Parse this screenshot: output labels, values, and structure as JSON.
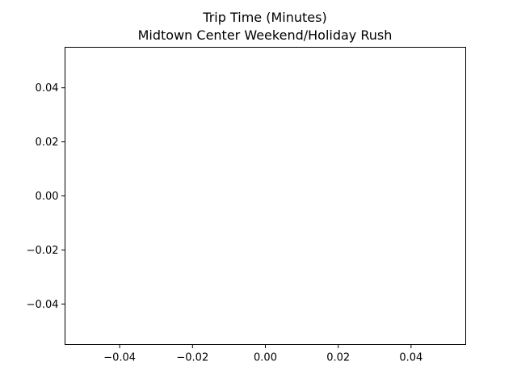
{
  "chart_data": {
    "type": "line",
    "title": [
      "Trip Time (Minutes)",
      "Midtown Center Weekend/Holiday Rush"
    ],
    "xlabel": "",
    "ylabel": "",
    "series": [],
    "xlim": [
      -0.055,
      0.055
    ],
    "ylim": [
      -0.055,
      0.055
    ],
    "xticks": [
      -0.04,
      -0.02,
      0.0,
      0.02,
      0.04
    ],
    "yticks": [
      -0.04,
      -0.02,
      0.0,
      0.02,
      0.04
    ],
    "xtick_labels": [
      "−0.04",
      "−0.02",
      "0.00",
      "0.02",
      "0.04"
    ],
    "ytick_labels": [
      "−0.04",
      "−0.02",
      "0.00",
      "0.02",
      "0.04"
    ],
    "grid": false,
    "legend": "none"
  }
}
